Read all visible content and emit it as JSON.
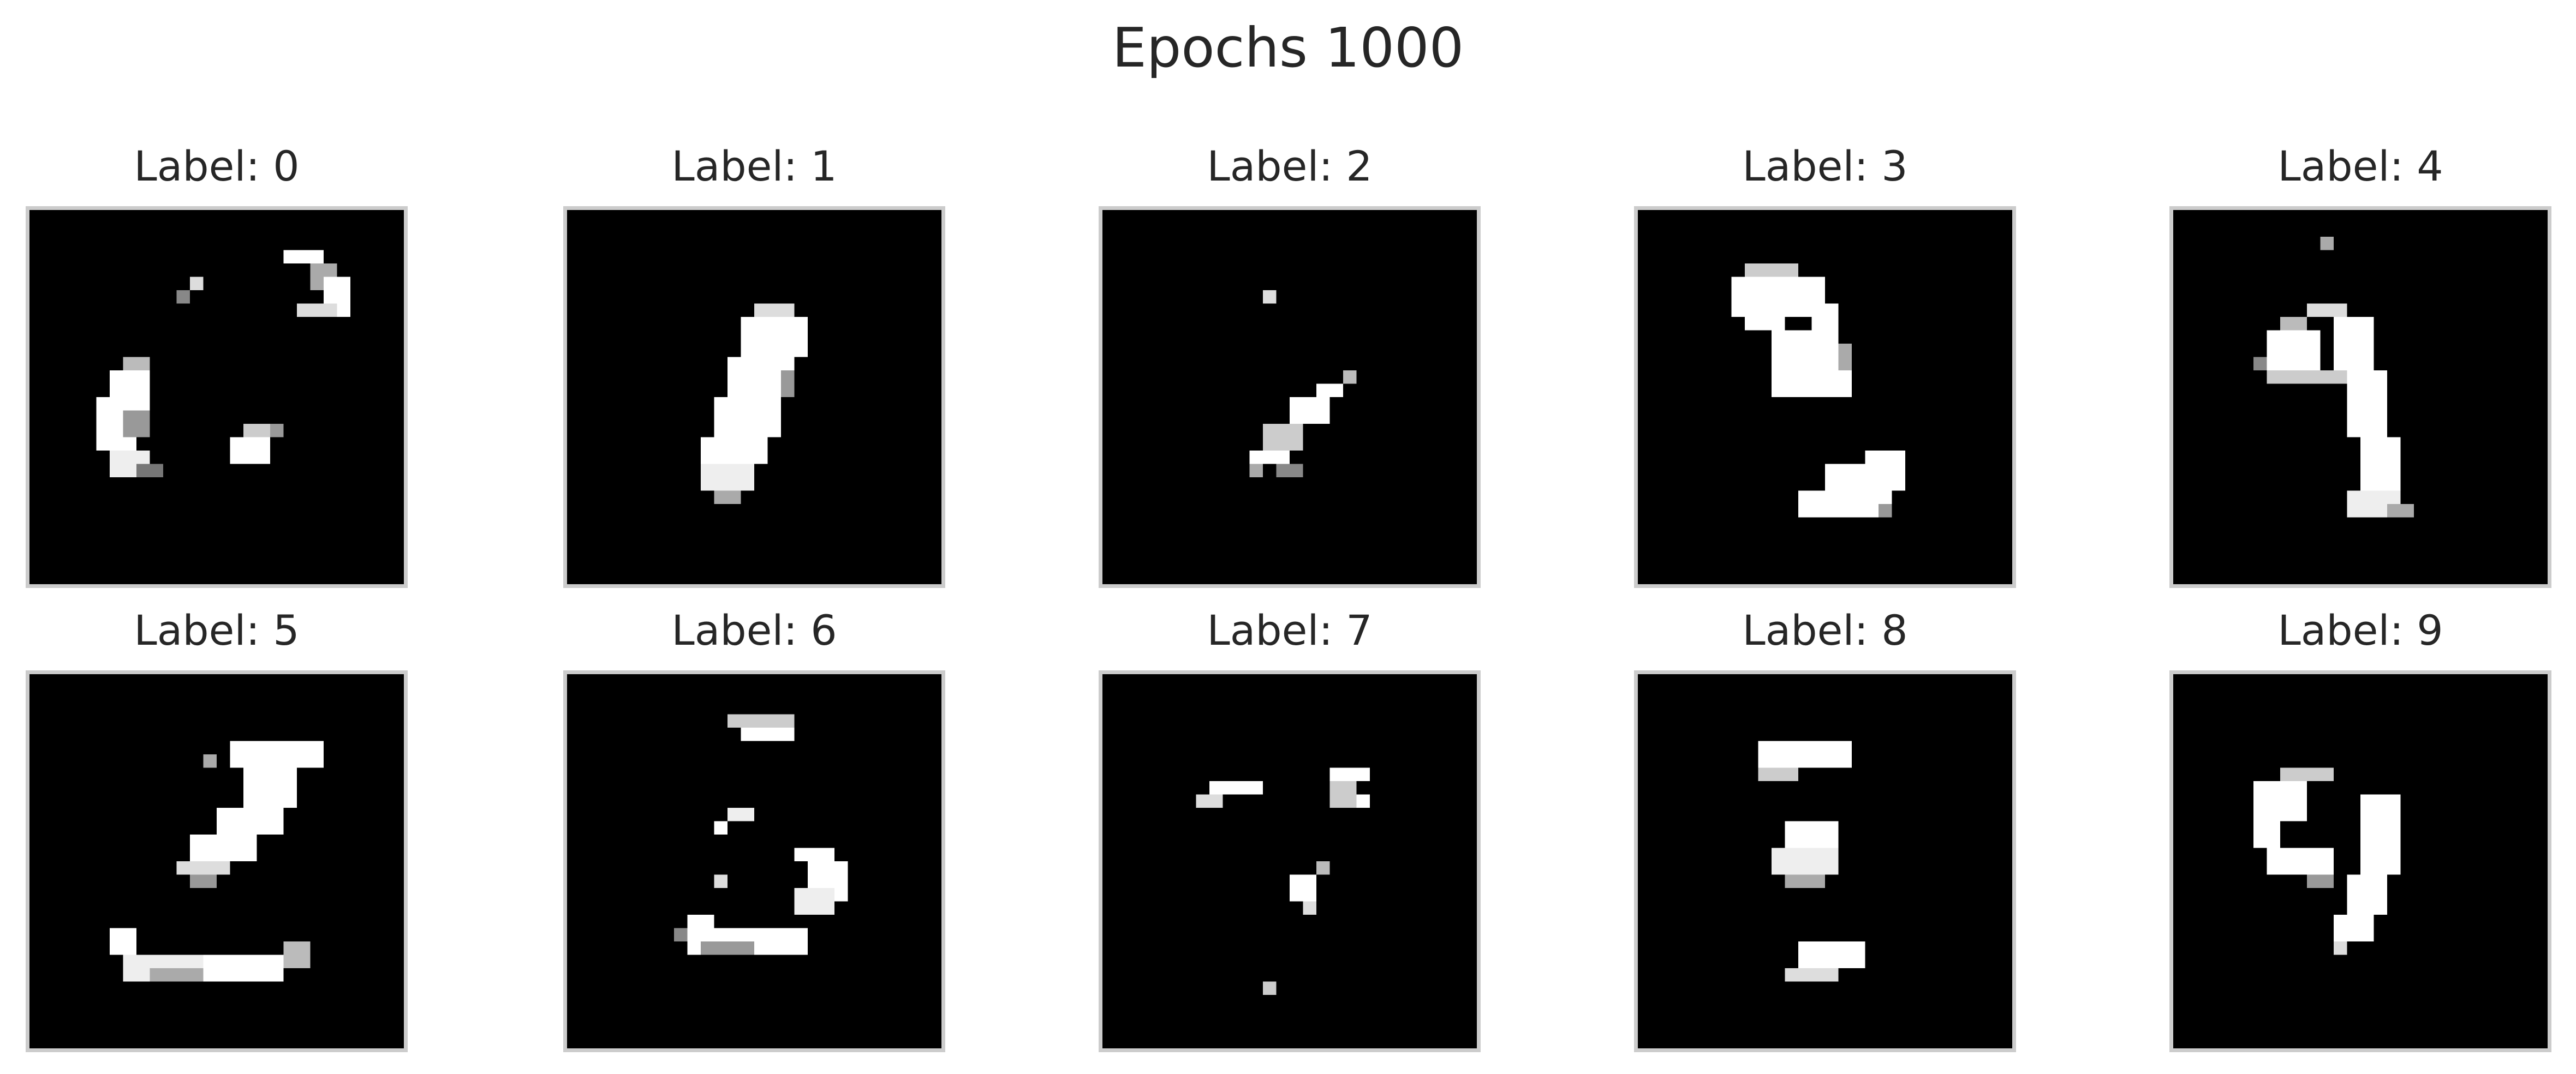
{
  "figure": {
    "title": "Epochs 1000",
    "colors": {
      "background": "#ffffff",
      "text": "#262626",
      "frame": "#cccccc",
      "image_background": "#000000",
      "stroke_pixels": "#ffffff"
    },
    "panels": [
      {
        "label": "Label: 0"
      },
      {
        "label": "Label: 1"
      },
      {
        "label": "Label: 2"
      },
      {
        "label": "Label: 3"
      },
      {
        "label": "Label: 4"
      },
      {
        "label": "Label: 5"
      },
      {
        "label": "Label: 6"
      },
      {
        "label": "Label: 7"
      },
      {
        "label": "Label: 8"
      },
      {
        "label": "Label: 9"
      }
    ]
  }
}
